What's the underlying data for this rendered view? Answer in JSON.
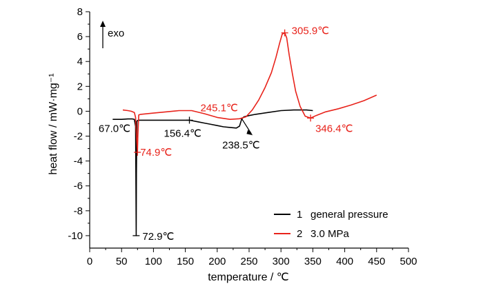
{
  "chart_data": {
    "type": "line",
    "xlabel": "temperature / ℃",
    "ylabel": "heat flow / mW·mg⁻¹",
    "xlim": [
      0,
      500
    ],
    "ylim": [
      -11,
      8
    ],
    "xticks": [
      0,
      50,
      100,
      150,
      200,
      250,
      300,
      350,
      400,
      450,
      500
    ],
    "yticks": [
      -10,
      -8,
      -6,
      -4,
      -2,
      0,
      2,
      4,
      6,
      8
    ],
    "exo_label": "exo",
    "series": [
      {
        "name": "general pressure",
        "legend_number": "1",
        "color": "#000000",
        "x": [
          36,
          50,
          60,
          67,
          70,
          72,
          72.5,
          72.9,
          73.3,
          74,
          76,
          90,
          110,
          130,
          150,
          156.4,
          160,
          170,
          180,
          190,
          200,
          210,
          220,
          230,
          235,
          238.5,
          242,
          250,
          260,
          280,
          300,
          320,
          340,
          350
        ],
        "y": [
          -0.65,
          -0.65,
          -0.62,
          -0.62,
          -0.65,
          -1.2,
          -6.0,
          -10.0,
          -5.0,
          -0.8,
          -0.72,
          -0.72,
          -0.72,
          -0.72,
          -0.72,
          -0.72,
          -0.75,
          -0.85,
          -0.95,
          -1.05,
          -1.15,
          -1.25,
          -1.3,
          -1.35,
          -1.2,
          -0.6,
          -0.45,
          -0.35,
          -0.25,
          -0.1,
          0.05,
          0.1,
          0.1,
          0.05
        ]
      },
      {
        "name": "3.0 MPa",
        "legend_number": "2",
        "color": "#e8221a",
        "x": [
          52,
          60,
          65,
          70,
          72,
          73.5,
          74.9,
          75.5,
          77,
          80,
          100,
          120,
          140,
          160,
          180,
          200,
          220,
          235,
          245.1,
          255,
          265,
          275,
          285,
          292,
          298,
          302,
          305.9,
          309,
          313,
          318,
          323,
          330,
          338,
          346.4,
          355,
          370,
          390,
          410,
          430,
          450
        ],
        "y": [
          0.1,
          0.05,
          0.0,
          -0.1,
          -0.5,
          -2.0,
          -3.3,
          -2.0,
          -0.3,
          -0.25,
          -0.15,
          -0.05,
          0.05,
          0.05,
          -0.2,
          -0.5,
          -0.65,
          -0.6,
          -0.45,
          0.1,
          0.9,
          1.9,
          3.1,
          4.3,
          5.5,
          6.2,
          6.3,
          5.9,
          4.5,
          3.0,
          1.6,
          0.4,
          -0.4,
          -0.55,
          -0.35,
          -0.05,
          0.2,
          0.5,
          0.85,
          1.3
        ]
      }
    ],
    "annotations": [
      {
        "text": "67.0℃",
        "series": 0,
        "x": 67,
        "y": -0.62
      },
      {
        "text": "72.9℃",
        "series": 0,
        "x": 72.9,
        "y": -10.0
      },
      {
        "text": "156.4℃",
        "series": 0,
        "x": 156.4,
        "y": -0.72
      },
      {
        "text": "238.5℃",
        "series": 0,
        "x": 238.5,
        "y": -0.6
      },
      {
        "text": "74.9℃",
        "series": 1,
        "x": 74.9,
        "y": -3.3
      },
      {
        "text": "245.1℃",
        "series": 1,
        "x": 245.1,
        "y": -0.45
      },
      {
        "text": "305.9℃",
        "series": 1,
        "x": 305.9,
        "y": 6.3
      },
      {
        "text": "346.4℃",
        "series": 1,
        "x": 346.4,
        "y": -0.55
      }
    ],
    "legend_position": "bottom-right",
    "grid": false
  }
}
